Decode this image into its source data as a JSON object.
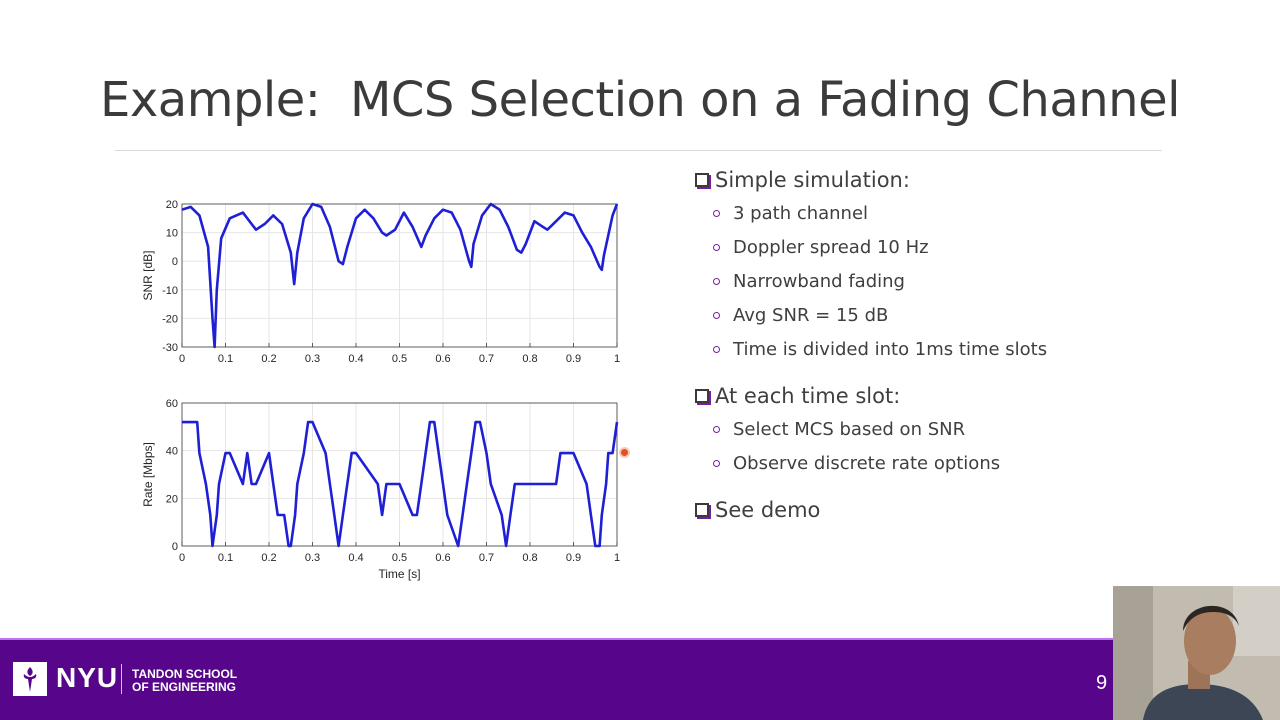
{
  "slide": {
    "title": "Example:  MCS Selection on a Fading Channel",
    "page_number": "9"
  },
  "bullets": [
    {
      "text": "Simple simulation:",
      "children": [
        "3 path channel",
        "Doppler spread 10 Hz",
        "Narrowband fading",
        "Avg SNR = 15 dB",
        "Time is divided into 1ms time slots"
      ]
    },
    {
      "text": "At each time slot:",
      "children": [
        "Select MCS based on SNR",
        "Observe discrete rate options"
      ]
    },
    {
      "text": "See demo",
      "children": []
    }
  ],
  "footer": {
    "logo_text": "NYU",
    "school_line1": "TANDON SCHOOL",
    "school_line2": "OF ENGINEERING"
  },
  "colors": {
    "accent": "#57068c",
    "line": "#1f1fd6",
    "bullet": "#7a1ea1"
  },
  "chart_data": [
    {
      "type": "line",
      "title": "",
      "xlabel": "",
      "ylabel": "SNR [dB]",
      "xlim": [
        0,
        1
      ],
      "ylim": [
        -30,
        20
      ],
      "xticks": [
        "0",
        "0.1",
        "0.2",
        "0.3",
        "0.4",
        "0.5",
        "0.6",
        "0.7",
        "0.8",
        "0.9",
        "1"
      ],
      "yticks": [
        "20",
        "10",
        "0",
        "-10",
        "-20",
        "-30"
      ],
      "grid": true,
      "series": [
        {
          "x": [
            0,
            0.02,
            0.04,
            0.06,
            0.07,
            0.075,
            0.08,
            0.09,
            0.11,
            0.14,
            0.16,
            0.17,
            0.19,
            0.21,
            0.23,
            0.25,
            0.258,
            0.265,
            0.28,
            0.3,
            0.32,
            0.34,
            0.36,
            0.37,
            0.38,
            0.4,
            0.42,
            0.44,
            0.46,
            0.47,
            0.49,
            0.51,
            0.53,
            0.55,
            0.56,
            0.58,
            0.6,
            0.62,
            0.64,
            0.66,
            0.665,
            0.67,
            0.69,
            0.71,
            0.73,
            0.75,
            0.77,
            0.78,
            0.79,
            0.81,
            0.83,
            0.84,
            0.86,
            0.88,
            0.9,
            0.92,
            0.94,
            0.96,
            0.965,
            0.97,
            0.99,
            1.0
          ],
          "y": [
            18,
            19,
            16,
            5,
            -20,
            -30,
            -10,
            8,
            15,
            17,
            13,
            11,
            13,
            16,
            13,
            3,
            -8,
            3,
            15,
            20,
            19,
            12,
            0,
            -1,
            5,
            15,
            18,
            15,
            10,
            9,
            11,
            17,
            12,
            5,
            9,
            15,
            18,
            17,
            11,
            0,
            -2,
            6,
            16,
            20,
            18,
            12,
            4,
            3,
            6,
            14,
            12,
            11,
            14,
            17,
            16,
            10,
            5,
            -2,
            -3,
            2,
            16,
            20
          ]
        }
      ]
    },
    {
      "type": "line",
      "title": "",
      "xlabel": "Time [s]",
      "ylabel": "Rate [Mbps]",
      "xlim": [
        0,
        1
      ],
      "ylim": [
        0,
        60
      ],
      "xticks": [
        "0",
        "0.1",
        "0.2",
        "0.3",
        "0.4",
        "0.5",
        "0.6",
        "0.7",
        "0.8",
        "0.9",
        "1"
      ],
      "yticks": [
        "60",
        "40",
        "20",
        "0"
      ],
      "grid": true,
      "series": [
        {
          "x": [
            0,
            0.035,
            0.04,
            0.055,
            0.065,
            0.07,
            0.08,
            0.085,
            0.1,
            0.11,
            0.14,
            0.15,
            0.16,
            0.17,
            0.2,
            0.21,
            0.22,
            0.235,
            0.245,
            0.25,
            0.26,
            0.265,
            0.28,
            0.29,
            0.3,
            0.33,
            0.34,
            0.35,
            0.36,
            0.37,
            0.38,
            0.39,
            0.4,
            0.45,
            0.46,
            0.47,
            0.48,
            0.49,
            0.5,
            0.53,
            0.54,
            0.55,
            0.56,
            0.57,
            0.58,
            0.6,
            0.61,
            0.635,
            0.645,
            0.655,
            0.665,
            0.675,
            0.685,
            0.7,
            0.71,
            0.735,
            0.745,
            0.755,
            0.765,
            0.775,
            0.785,
            0.795,
            0.8,
            0.85,
            0.86,
            0.87,
            0.88,
            0.89,
            0.9,
            0.93,
            0.94,
            0.95,
            0.96,
            0.965,
            0.975,
            0.98,
            0.99,
            1.0
          ],
          "y": [
            52,
            52,
            39,
            26,
            13,
            0,
            13,
            26,
            39,
            39,
            26,
            39,
            26,
            26,
            39,
            26,
            13,
            13,
            0,
            0,
            13,
            26,
            39,
            52,
            52,
            39,
            26,
            13,
            0,
            13,
            26,
            39,
            39,
            26,
            13,
            26,
            26,
            26,
            26,
            13,
            13,
            26,
            39,
            52,
            52,
            26,
            13,
            0,
            13,
            26,
            39,
            52,
            52,
            39,
            26,
            13,
            0,
            13,
            26,
            26,
            26,
            26,
            26,
            26,
            26,
            39,
            39,
            39,
            39,
            26,
            13,
            0,
            0,
            13,
            26,
            39,
            39,
            52
          ]
        }
      ]
    }
  ]
}
